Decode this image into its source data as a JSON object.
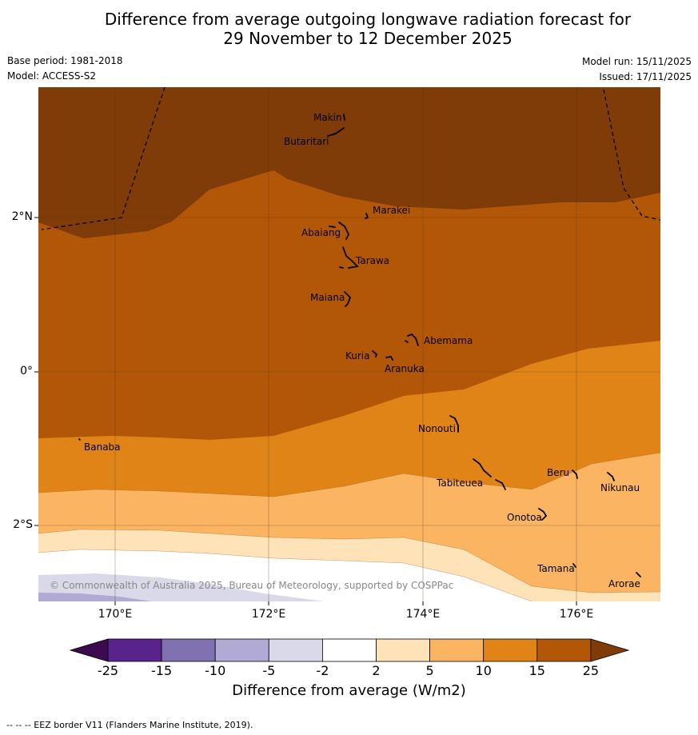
{
  "title_line1": "Difference from average outgoing longwave radiation forecast for",
  "title_line2": "29 November to 12 December 2025",
  "base_period": "Base period: 1981-2018",
  "model": "Model: ACCESS-S2",
  "model_run": "Model run: 15/11/2025",
  "issued": "Issued: 17/11/2025",
  "copyright": "© Commonwealth of Australia 2025, Bureau of Meteorology, supported by COSPPac",
  "lat_labels": [
    "2°N",
    "0°",
    "2°S"
  ],
  "lon_labels": [
    "170°E",
    "172°E",
    "174°E",
    "176°E"
  ],
  "places": [
    "Makin",
    "Butaritari",
    "Marakei",
    "Abaiang",
    "Tarawa",
    "Maiana",
    "Abemama",
    "Kuria",
    "Aranuka",
    "Nonouti",
    "Banaba",
    "Tabiteuea",
    "Beru",
    "Nikunau",
    "Onotoa",
    "Tamana",
    "Arorae"
  ],
  "colorbar": {
    "ticks": [
      "-25",
      "-15",
      "-10",
      "-5",
      "-2",
      "2",
      "5",
      "10",
      "15",
      "25"
    ],
    "colors": [
      "#3b0a4f",
      "#58238a",
      "#8072b0",
      "#b1aad4",
      "#d9d9ea",
      "#ffffff",
      "#fee3b9",
      "#fbb562",
      "#e08418",
      "#b25708",
      "#7f3b08"
    ],
    "label": "Difference from average (W/m2)"
  },
  "footnote": "--  --  -- EEZ border V11 (Flanders Marine Institute, 2019)."
}
